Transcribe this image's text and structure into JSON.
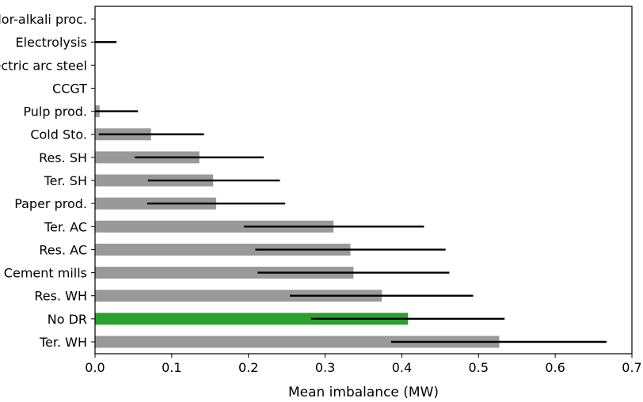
{
  "chart_data": {
    "type": "bar",
    "orientation": "horizontal",
    "title": "",
    "xlabel": "Mean imbalance (MW)",
    "ylabel": "",
    "xlim": [
      0,
      0.7
    ],
    "x_ticks": [
      "0.0",
      "0.1",
      "0.2",
      "0.3",
      "0.4",
      "0.5",
      "0.6",
      "0.7"
    ],
    "grid": false,
    "legend": "none",
    "bar_color": "#999999",
    "highlight_color": "#2ca02c",
    "error_color": "#000000",
    "categories": [
      "Ter. WH",
      "No DR",
      "Res. WH",
      "Cement mills",
      "Res. AC",
      "Ter. AC",
      "Paper prod.",
      "Ter. SH",
      "Res. SH",
      "Cold Sto.",
      "Pulp prod.",
      "CCGT",
      "Electric arc steel",
      "Electrolysis",
      "Chlor-alkali proc."
    ],
    "values": [
      0.527,
      0.408,
      0.374,
      0.337,
      0.333,
      0.311,
      0.158,
      0.154,
      0.136,
      0.073,
      0.006,
      0.0,
      0.0,
      0.0,
      0.0
    ],
    "error_low": [
      0.386,
      0.282,
      0.254,
      0.212,
      0.209,
      0.194,
      0.068,
      0.069,
      0.052,
      0.005,
      0.0,
      0.0,
      0.0,
      0.0,
      0.0
    ],
    "error_high": [
      0.667,
      0.534,
      0.493,
      0.462,
      0.457,
      0.429,
      0.248,
      0.241,
      0.22,
      0.142,
      0.056,
      0.0,
      0.0,
      0.028,
      0.0
    ],
    "highlight_index": 1
  }
}
